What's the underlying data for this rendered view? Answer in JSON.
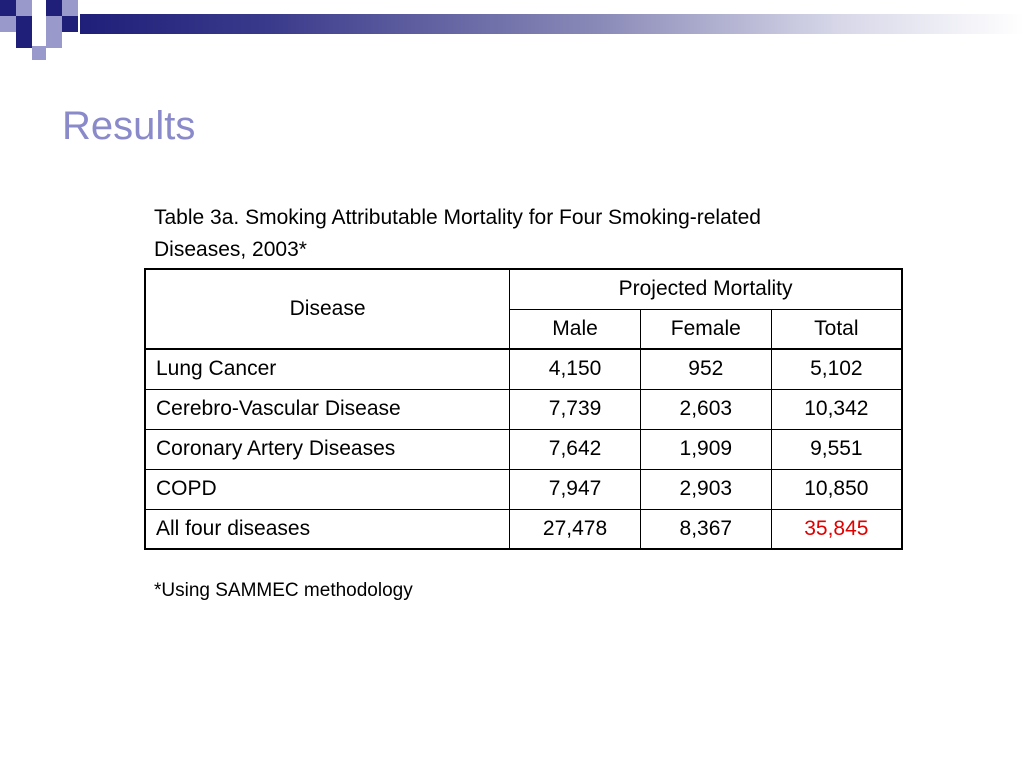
{
  "slide": {
    "title": "Results",
    "caption": "Table 3a. Smoking Attributable Mortality for Four Smoking-related Diseases, 2003*",
    "footnote": "*Using SAMMEC methodology",
    "colors": {
      "title": "#8a8acb",
      "accent_navy": "#1f1f7a",
      "accent_lavender": "#9999cc",
      "highlight": "#e00000"
    }
  },
  "table": {
    "header": {
      "disease": "Disease",
      "group": "Projected Mortality",
      "male": "Male",
      "female": "Female",
      "total": "Total"
    },
    "rows": [
      {
        "disease": "Lung Cancer",
        "male": "4,150",
        "female": "952",
        "total": "5,102"
      },
      {
        "disease": "Cerebro-Vascular Disease",
        "male": "7,739",
        "female": "2,603",
        "total": "10,342"
      },
      {
        "disease": "Coronary Artery Diseases",
        "male": "7,642",
        "female": "1,909",
        "total": "9,551"
      },
      {
        "disease": "COPD",
        "male": "7,947",
        "female": "2,903",
        "total": "10,850"
      },
      {
        "disease": "All four diseases",
        "male": "27,478",
        "female": "8,367",
        "total": "35,845"
      }
    ]
  }
}
